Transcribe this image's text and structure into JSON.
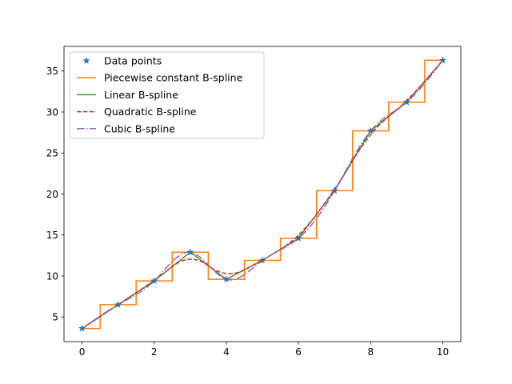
{
  "chart_data": {
    "type": "line",
    "title": "",
    "xlabel": "",
    "ylabel": "",
    "xlim": [
      -0.5,
      10.5
    ],
    "ylim": [
      2.0,
      38.0
    ],
    "xticks": [
      0,
      2,
      4,
      6,
      8,
      10
    ],
    "yticks": [
      5,
      10,
      15,
      20,
      25,
      30,
      35
    ],
    "grid": false,
    "legend_position": "upper-left",
    "data_points": {
      "x": [
        0,
        1,
        2,
        3,
        4,
        5,
        6,
        7,
        8,
        9,
        10
      ],
      "y": [
        3.6,
        6.5,
        9.4,
        12.9,
        9.6,
        11.9,
        14.6,
        20.4,
        27.7,
        31.2,
        36.3
      ]
    },
    "series": [
      {
        "name": "Data points",
        "style": "markers",
        "marker": "star",
        "color": "#1f77b4"
      },
      {
        "name": "Piecewise constant B-spline",
        "style": "step",
        "color": "#ff7f0e"
      },
      {
        "name": "Linear B-spline",
        "style": "solid",
        "color": "#2ca02c"
      },
      {
        "name": "Quadratic B-spline",
        "style": "dashed",
        "color": "#d62728"
      },
      {
        "name": "Cubic B-spline",
        "style": "dashdot",
        "color": "#9467bd"
      }
    ]
  }
}
